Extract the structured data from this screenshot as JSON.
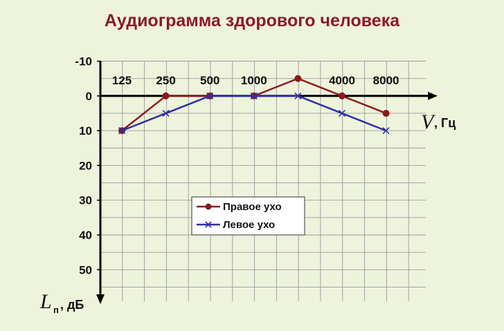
{
  "chart_data": {
    "type": "line",
    "title": "Аудиограмма здорового человека",
    "x_tick_labels": [
      "125",
      "250",
      "500",
      "1000",
      "",
      "4000",
      "8000"
    ],
    "y_tick_labels": [
      "-10",
      "0",
      "10",
      "20",
      "30",
      "40",
      "50"
    ],
    "ylim": [
      -10,
      55
    ],
    "y_inverted": true,
    "grid": true,
    "xlabel": {
      "symbol": "V",
      "unit": ", Гц"
    },
    "ylabel": {
      "symbol": "L",
      "subscript": "п",
      "unit": ", дБ"
    },
    "legend_position": "center",
    "series": [
      {
        "name": "Правое ухо",
        "color": "#8b1a1a",
        "marker": "circle",
        "values": [
          10,
          0,
          0,
          0,
          -5,
          0,
          5
        ]
      },
      {
        "name": "Левое ухо",
        "color": "#2e2ea6",
        "marker": "x",
        "values": [
          10,
          5,
          0,
          0,
          0,
          5,
          10
        ]
      }
    ]
  }
}
